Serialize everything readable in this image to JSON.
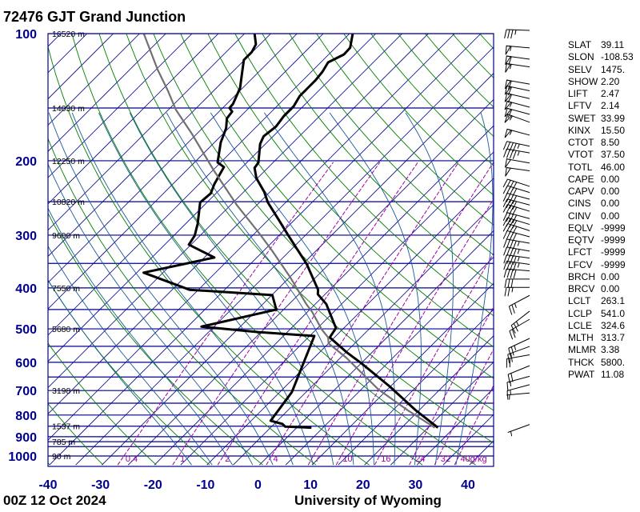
{
  "header": {
    "title": "72476 GJT Grand Junction"
  },
  "footer": {
    "date": "00Z 12 Oct 2024",
    "credit": "University of Wyoming"
  },
  "parameters": [
    [
      "SLAT",
      "39.11"
    ],
    [
      "SLON",
      "-108.53"
    ],
    [
      "SELV",
      "1475."
    ],
    [
      "SHOW",
      "2.20"
    ],
    [
      "LIFT",
      "2.47"
    ],
    [
      "LFTV",
      "2.14"
    ],
    [
      "SWET",
      "33.99"
    ],
    [
      "KINX",
      "15.50"
    ],
    [
      "CTOT",
      "8.50"
    ],
    [
      "VTOT",
      "37.50"
    ],
    [
      "TOTL",
      "46.00"
    ],
    [
      "CAPE",
      "0.00"
    ],
    [
      "CAPV",
      "0.00"
    ],
    [
      "CINS",
      "0.00"
    ],
    [
      "CINV",
      "0.00"
    ],
    [
      "EQLV",
      "-9999"
    ],
    [
      "EQTV",
      "-9999"
    ],
    [
      "LFCT",
      "-9999"
    ],
    [
      "LFCV",
      "-9999"
    ],
    [
      "BRCH",
      "0.00"
    ],
    [
      "BRCV",
      "0.00"
    ],
    [
      "LCLT",
      "263.1"
    ],
    [
      "LCLP",
      "541.0"
    ],
    [
      "LCLE",
      "324.6"
    ],
    [
      "MLTH",
      "313.7"
    ],
    [
      "MLMR",
      "3.38"
    ],
    [
      "THCK",
      "5800."
    ],
    [
      "PWAT",
      "11.08"
    ]
  ],
  "chart_data": {
    "type": "skew-t log-p",
    "y_axis": {
      "scale": "log",
      "range_hpa": [
        1050,
        100
      ],
      "tick_labels": [
        "100",
        "200",
        "300",
        "400",
        "500",
        "600",
        "700",
        "800",
        "900",
        "1000"
      ],
      "ticks": [
        100,
        200,
        300,
        400,
        500,
        600,
        700,
        800,
        900,
        1000
      ]
    },
    "x_axis": {
      "range_c": [
        -40,
        45
      ],
      "tick_labels": [
        "-40",
        "-30",
        "-20",
        "-10",
        "0",
        "10",
        "20",
        "30",
        "40"
      ],
      "ticks": [
        -40,
        -30,
        -20,
        -10,
        0,
        10,
        20,
        30,
        40
      ],
      "isotherm_skew_deg": 45
    },
    "isobars": [
      100,
      150,
      200,
      250,
      300,
      350,
      400,
      450,
      500,
      550,
      600,
      650,
      700,
      750,
      800,
      850,
      900,
      925,
      950,
      1000
    ],
    "height_labels": [
      {
        "p": 100,
        "text": "16520 m"
      },
      {
        "p": 150,
        "text": "14030 m"
      },
      {
        "p": 200,
        "text": "12250 m"
      },
      {
        "p": 250,
        "text": "10820 m"
      },
      {
        "p": 300,
        "text": "9600 m"
      },
      {
        "p": 400,
        "text": "7550 m"
      },
      {
        "p": 500,
        "text": "5680 m"
      },
      {
        "p": 700,
        "text": "3198 m"
      },
      {
        "p": 850,
        "text": "1537 m"
      },
      {
        "p": 925,
        "text": "785 m"
      },
      {
        "p": 1000,
        "text": "90 m"
      }
    ],
    "mixing_ratio_lines": [
      {
        "r": 0.4,
        "text": "0.4"
      },
      {
        "r": 1,
        "text": "1"
      },
      {
        "r": 2,
        "text": "2"
      },
      {
        "r": 4,
        "text": "4"
      },
      {
        "r": 7,
        "text": "7"
      },
      {
        "r": 10,
        "text": "10"
      },
      {
        "r": 16,
        "text": "16"
      },
      {
        "r": 24,
        "text": "24"
      },
      {
        "r": 32,
        "text": "32"
      },
      {
        "r": 40,
        "text": "40g/kg"
      }
    ],
    "dry_adiabats_theta_k": [
      230,
      480,
      10
    ],
    "moist_adiabats_start_c_at_1000": [
      -16,
      -12,
      -8,
      -4,
      0,
      4,
      8,
      12,
      16,
      20,
      24,
      28,
      32,
      36
    ],
    "colors": {
      "grid": "#000090",
      "isotherm": "#000090",
      "dry_adiabat": "#008000",
      "moist_adiabat": "#1a5a9a",
      "mixing_ratio": "#a000a0",
      "profile": "#000000",
      "parcel": "#707070",
      "axis_label": "#000090"
    },
    "series": [
      {
        "color": "#000000",
        "points_p_t": [
          [
            100,
            -64.4
          ],
          [
            108,
            -62.2
          ],
          [
            112,
            -62.1
          ],
          [
            117,
            -63.6
          ],
          [
            123,
            -62.9
          ],
          [
            129,
            -62.6
          ],
          [
            134.5,
            -62.6
          ],
          [
            140.5,
            -62.6
          ],
          [
            148.7,
            -61.8
          ],
          [
            156.7,
            -61.8
          ],
          [
            166,
            -61.3
          ],
          [
            175,
            -61.8
          ],
          [
            182.5,
            -61.0
          ],
          [
            202,
            -57.8
          ],
          [
            208,
            -57.5
          ],
          [
            220,
            -55.2
          ],
          [
            237,
            -51.1
          ],
          [
            251,
            -48.4
          ],
          [
            279,
            -42.4
          ],
          [
            299,
            -38.5
          ],
          [
            351,
            -29.3
          ],
          [
            404,
            -22.2
          ],
          [
            414,
            -21.4
          ],
          [
            437,
            -17.9
          ],
          [
            498,
            -11.5
          ],
          [
            524,
            -10.9
          ],
          [
            567,
            -5.0
          ],
          [
            606,
            0.4
          ],
          [
            684,
            9.8
          ],
          [
            780,
            19.4
          ],
          [
            857,
            26.9
          ]
        ]
      },
      {
        "color": "#000000",
        "points_p_t": [
          [
            100,
            -83.1
          ],
          [
            106,
            -80.8
          ],
          [
            110.6,
            -80.1
          ],
          [
            115.5,
            -80.1
          ],
          [
            123,
            -78.2
          ],
          [
            134.5,
            -75.5
          ],
          [
            146.8,
            -73.8
          ],
          [
            150,
            -73.7
          ],
          [
            153,
            -72.5
          ],
          [
            158.8,
            -72.2
          ],
          [
            167.4,
            -70.5
          ],
          [
            181,
            -68.8
          ],
          [
            201.8,
            -65.6
          ],
          [
            207,
            -63.5
          ],
          [
            227,
            -62.1
          ],
          [
            239,
            -61.0
          ],
          [
            251,
            -61.3
          ],
          [
            282,
            -57.7
          ],
          [
            301,
            -56.0
          ],
          [
            316,
            -55.4
          ],
          [
            339,
            -48.1
          ],
          [
            368,
            -58.7
          ],
          [
            404,
            -46.7
          ],
          [
            416,
            -29.9
          ],
          [
            450,
            -26.4
          ],
          [
            494,
            -37.4
          ],
          [
            509,
            -25.5
          ],
          [
            520,
            -14.1
          ],
          [
            706,
            -7.7
          ],
          [
            825,
            -6.3
          ],
          [
            840,
            -3.4
          ],
          [
            852,
            -2.4
          ],
          [
            857,
            2.8
          ]
        ]
      },
      {
        "color": "#707070",
        "points_p_t": [
          [
            100,
            -104.2
          ],
          [
            121.7,
            -94.7
          ],
          [
            136.3,
            -88.8
          ],
          [
            151.4,
            -83.6
          ],
          [
            172.5,
            -76.0
          ],
          [
            210.8,
            -64.8
          ],
          [
            255.5,
            -53.6
          ],
          [
            294.9,
            -44.6
          ],
          [
            326,
            -38.5
          ],
          [
            378,
            -29.8
          ],
          [
            437,
            -21.7
          ],
          [
            456,
            -19.1
          ],
          [
            502,
            -13.9
          ],
          [
            524,
            -11.2
          ],
          [
            541,
            -10.0
          ],
          [
            585,
            -3.9
          ],
          [
            696,
            8.3
          ],
          [
            780,
            17.9
          ],
          [
            857,
            26.3
          ]
        ]
      }
    ],
    "winds_kt": [
      {
        "p": 100,
        "dir": 272,
        "spd": 35
      },
      {
        "p": 110,
        "dir": 275,
        "spd": 55
      },
      {
        "p": 117,
        "dir": 278,
        "spd": 60
      },
      {
        "p": 122,
        "dir": 278,
        "spd": 55
      },
      {
        "p": 134,
        "dir": 280,
        "spd": 60
      },
      {
        "p": 139,
        "dir": 282,
        "spd": 60
      },
      {
        "p": 145,
        "dir": 283,
        "spd": 60
      },
      {
        "p": 152,
        "dir": 285,
        "spd": 55
      },
      {
        "p": 158,
        "dir": 285,
        "spd": 60
      },
      {
        "p": 165,
        "dir": 290,
        "spd": 55
      },
      {
        "p": 177,
        "dir": 285,
        "spd": 55
      },
      {
        "p": 188,
        "dir": 282,
        "spd": 45
      },
      {
        "p": 195,
        "dir": 280,
        "spd": 45
      },
      {
        "p": 206,
        "dir": 280,
        "spd": 50
      },
      {
        "p": 215,
        "dir": 278,
        "spd": 50
      },
      {
        "p": 234,
        "dir": 288,
        "spd": 40
      },
      {
        "p": 242,
        "dir": 287,
        "spd": 40
      },
      {
        "p": 251,
        "dir": 285,
        "spd": 40
      },
      {
        "p": 259,
        "dir": 285,
        "spd": 40
      },
      {
        "p": 268,
        "dir": 287,
        "spd": 40
      },
      {
        "p": 279,
        "dir": 285,
        "spd": 40
      },
      {
        "p": 288,
        "dir": 287,
        "spd": 40
      },
      {
        "p": 298,
        "dir": 288,
        "spd": 40
      },
      {
        "p": 308,
        "dir": 285,
        "spd": 40
      },
      {
        "p": 319,
        "dir": 280,
        "spd": 45
      },
      {
        "p": 333,
        "dir": 280,
        "spd": 45
      },
      {
        "p": 346,
        "dir": 278,
        "spd": 45
      },
      {
        "p": 358,
        "dir": 278,
        "spd": 45
      },
      {
        "p": 371,
        "dir": 275,
        "spd": 40
      },
      {
        "p": 388,
        "dir": 270,
        "spd": 30
      },
      {
        "p": 406,
        "dir": 270,
        "spd": 25
      },
      {
        "p": 424,
        "dir": 242,
        "spd": 25
      },
      {
        "p": 462,
        "dir": 232,
        "spd": 25
      },
      {
        "p": 483,
        "dir": 240,
        "spd": 20
      },
      {
        "p": 536,
        "dir": 245,
        "spd": 25
      },
      {
        "p": 560,
        "dir": 250,
        "spd": 20
      },
      {
        "p": 586,
        "dir": 260,
        "spd": 20
      },
      {
        "p": 622,
        "dir": 248,
        "spd": 20
      },
      {
        "p": 659,
        "dir": 255,
        "spd": 15
      },
      {
        "p": 690,
        "dir": 255,
        "spd": 15
      },
      {
        "p": 722,
        "dir": 265,
        "spd": 5
      },
      {
        "p": 857,
        "dir": 250,
        "spd": 5
      }
    ]
  }
}
